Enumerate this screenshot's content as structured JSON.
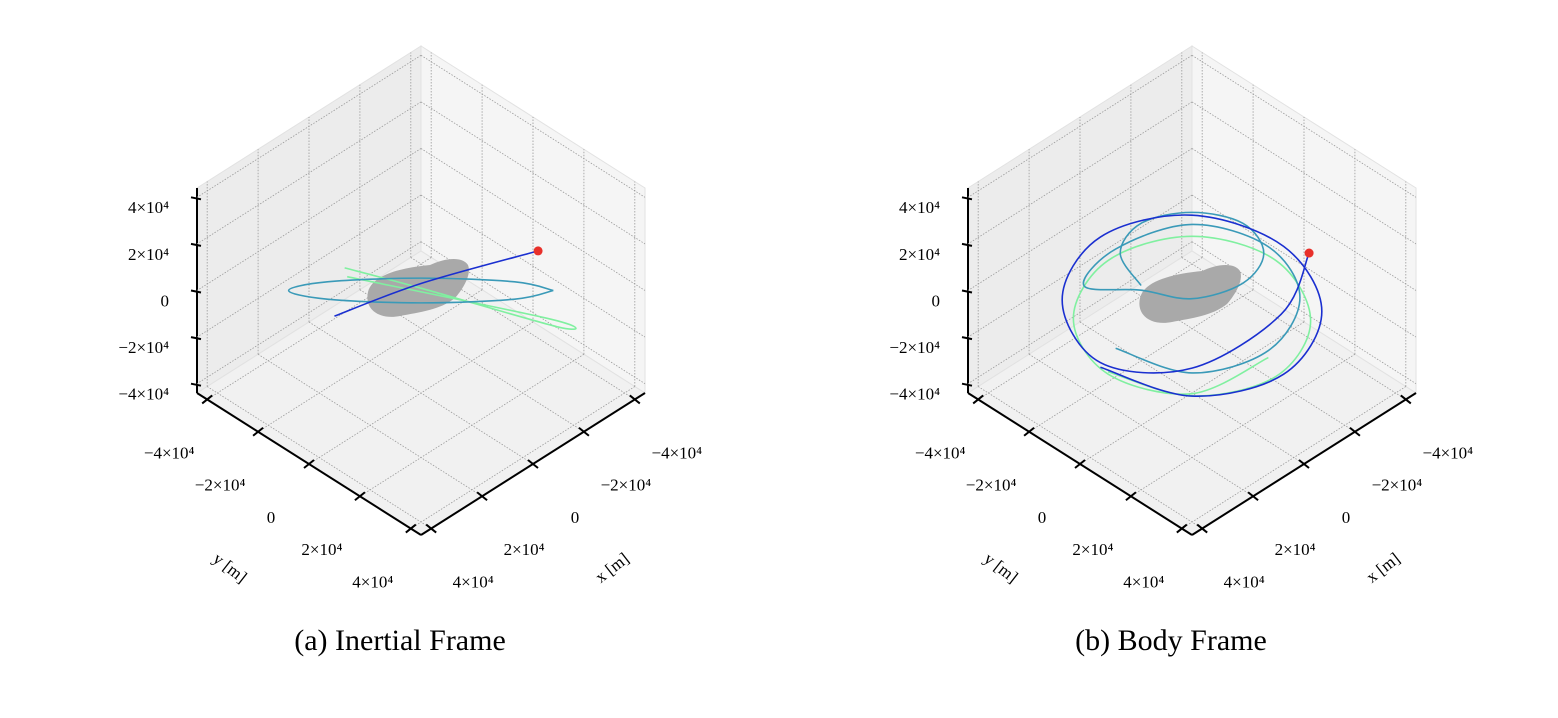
{
  "chart_data": [
    {
      "type": "line3d",
      "title": "(a) Inertial Frame",
      "xlabel": "x [m]",
      "ylabel": "y [m]",
      "xlim": [
        -44000,
        44000
      ],
      "ylim": [
        -44000,
        44000
      ],
      "zlim": [
        -44000,
        44000
      ],
      "xticks": [
        {
          "value": -40000,
          "label": "−4×10⁴"
        },
        {
          "value": -20000,
          "label": "−2×10⁴"
        },
        0,
        {
          "value": 20000,
          "label": "2×10⁴"
        },
        {
          "value": 40000,
          "label": "4×10⁴"
        }
      ],
      "yticks": [
        {
          "value": -40000,
          "label": "−4×10⁴"
        },
        {
          "value": -20000,
          "label": "−2×10⁴"
        },
        0,
        {
          "value": 20000,
          "label": "2×10⁴"
        },
        {
          "value": 40000,
          "label": "4×10⁴"
        }
      ],
      "zticks": [
        {
          "value": -40000,
          "label": "−4×10⁴"
        },
        {
          "value": -20000,
          "label": "−2×10⁴"
        },
        0,
        {
          "value": 20000,
          "label": "2×10⁴"
        },
        {
          "value": 40000,
          "label": "4×10⁴"
        }
      ],
      "grid": true,
      "series": [
        {
          "color": "#80f0a0",
          "x": [
            15000,
            0,
            -27000,
            -26000,
            16000
          ],
          "y": [
            -15000,
            0,
            27000,
            25000,
            -13000
          ],
          "z": [
            9700,
            1000,
            -15700,
            -13000,
            8000
          ]
        },
        {
          "color": "#3a9ab8",
          "x": [
            -26000,
            -14200,
            6000,
            22600,
            26000,
            14200,
            -6000,
            -22600,
            -26000
          ],
          "y": [
            26000,
            22600,
            6000,
            -14200,
            -26000,
            -22600,
            -6000,
            14200,
            26000
          ],
          "z": [
            0,
            2100,
            3000,
            2100,
            0,
            -2100,
            -3000,
            -2100,
            0
          ]
        },
        {
          "color": "#1a2fd0",
          "x": [
            17000,
            0,
            -23000
          ],
          "y": [
            -17000,
            0,
            23000
          ],
          "z": [
            -11000,
            3000,
            17000
          ]
        }
      ],
      "marker": {
        "color": "#e8302a",
        "x": -23000,
        "y": 23000,
        "z": 17000
      }
    },
    {
      "type": "line3d",
      "title": "(b) Body Frame",
      "xlabel": "x [m]",
      "ylabel": "y [m]",
      "xlim": [
        -44000,
        44000
      ],
      "ylim": [
        -44000,
        44000
      ],
      "zlim": [
        -44000,
        44000
      ],
      "xticks": [
        {
          "value": -40000,
          "label": "−4×10⁴"
        },
        {
          "value": -20000,
          "label": "−2×10⁴"
        },
        0,
        {
          "value": 20000,
          "label": "2×10⁴"
        },
        {
          "value": 40000,
          "label": "4×10⁴"
        }
      ],
      "yticks": [
        {
          "value": -40000,
          "label": "−4×10⁴"
        },
        {
          "value": -20000,
          "label": "−2×10⁴"
        },
        0,
        {
          "value": 20000,
          "label": "2×10⁴"
        },
        {
          "value": 40000,
          "label": "4×10⁴"
        }
      ],
      "zticks": [
        {
          "value": -40000,
          "label": "−4×10⁴"
        },
        {
          "value": -20000,
          "label": "−2×10⁴"
        },
        0,
        {
          "value": 20000,
          "label": "2×10⁴"
        },
        {
          "value": 40000,
          "label": "4×10⁴"
        }
      ],
      "grid": true,
      "series": [
        {
          "color": "#80f0a0",
          "x": [
            33000,
            23300,
            0,
            -23300,
            -33000,
            -23300,
            0,
            23300,
            33000,
            23300,
            0
          ],
          "y": [
            0,
            23300,
            33000,
            23300,
            0,
            -23300,
            -33000,
            -23300,
            0,
            23300,
            30000
          ],
          "z": [
            -12000,
            -13000,
            -14000,
            -13000,
            -10000,
            -9000,
            -10000,
            -12000,
            -13000,
            -12000,
            -8000
          ]
        },
        {
          "color": "#3a9ab8",
          "x": [
            30000,
            21200,
            0,
            -21200,
            -30000,
            -21200,
            0,
            21200,
            20000,
            14100,
            0,
            -14100,
            -20000,
            -14100,
            0,
            14100,
            20000
          ],
          "y": [
            0,
            21200,
            30000,
            21200,
            0,
            -21200,
            -30000,
            -21200,
            0,
            14100,
            20000,
            14100,
            0,
            -14100,
            -20000,
            -14100,
            0
          ],
          "z": [
            -4000,
            -6000,
            -5000,
            -3000,
            -2000,
            -1000,
            -3000,
            2000,
            14000,
            16000,
            17000,
            16000,
            15000,
            14000,
            15000,
            16000,
            16000
          ]
        },
        {
          "color": "#1a2fd0",
          "x": [
            36000,
            25500,
            0,
            -25500,
            -36000,
            -25500,
            0,
            25500,
            36000,
            25500,
            0,
            -18000
          ],
          "y": [
            0,
            25500,
            36000,
            25500,
            0,
            -25500,
            -36000,
            -25500,
            0,
            25500,
            35000,
            28000
          ],
          "z": [
            -8000,
            -10000,
            -11000,
            -9000,
            -6000,
            -3000,
            -2000,
            -4000,
            -6000,
            2000,
            14000,
            23000
          ]
        }
      ],
      "marker": {
        "color": "#e8302a",
        "x": -18000,
        "y": 28000,
        "z": 23000
      }
    }
  ]
}
